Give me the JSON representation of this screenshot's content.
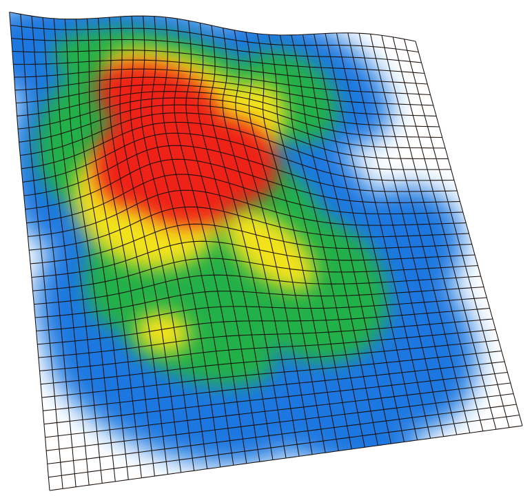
{
  "figure": {
    "type": "deformed-mesh-heatmap",
    "grid_lines": "black",
    "background": "#ffffff",
    "colormap": [
      "#ffffff",
      "#1f78e0",
      "#22b04a",
      "#f2e21c",
      "#ee2218"
    ]
  }
}
